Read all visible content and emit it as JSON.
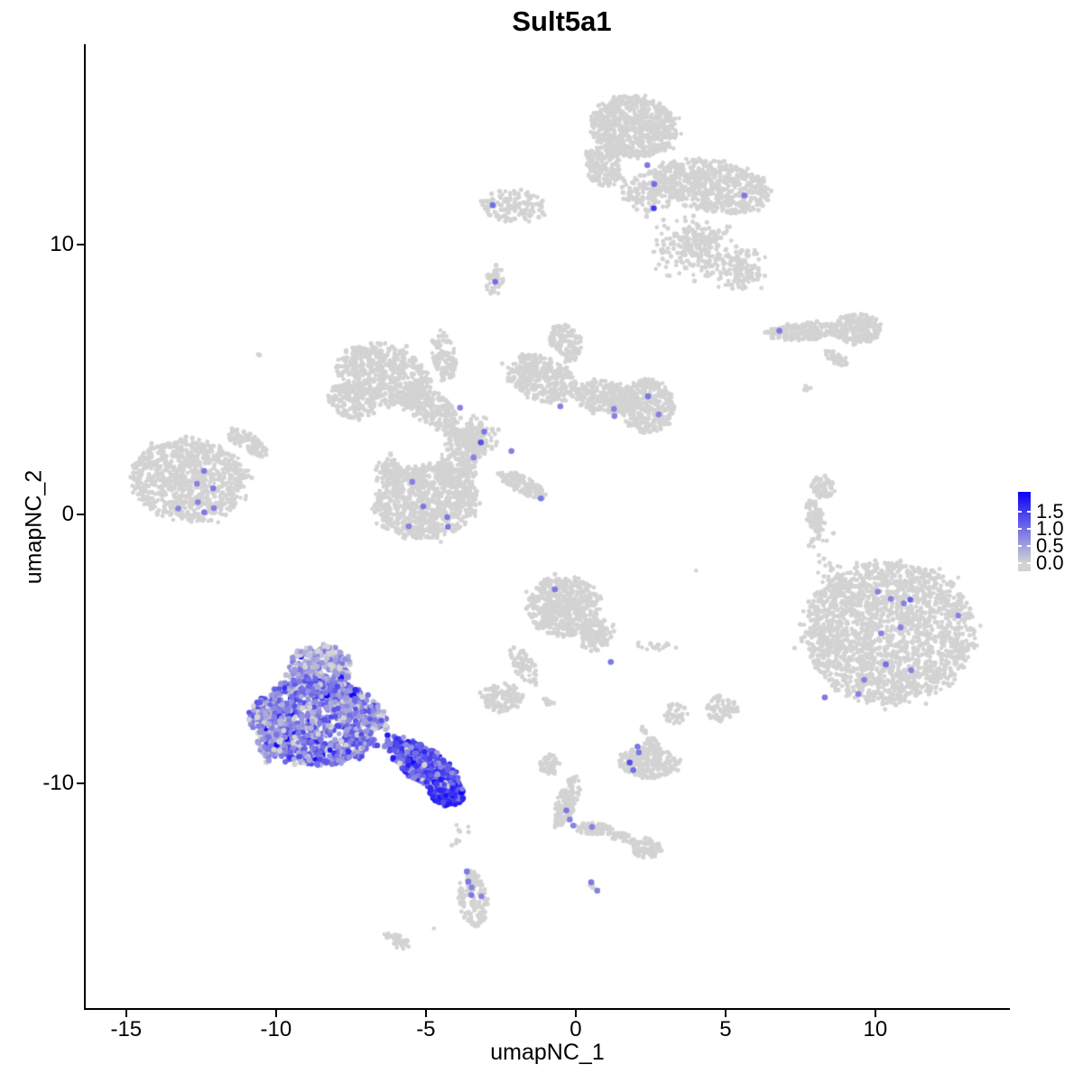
{
  "chart_data": {
    "type": "scatter",
    "title": "Sult5a1",
    "xlabel": "umapNC_1",
    "ylabel": "umapNC_2",
    "xlim": [
      -16.35,
      14.46
    ],
    "ylim": [
      -18.36,
      17.42
    ],
    "x_ticks": [
      -15,
      -10,
      -5,
      0,
      5,
      10
    ],
    "y_ticks": [
      -10,
      0,
      10
    ],
    "grid": false,
    "legend_position": "right",
    "colorbar": {
      "tick_labels": [
        "1.5",
        "1.0",
        "0.5",
        "0.0"
      ],
      "tick_values": [
        1.5,
        1.0,
        0.5,
        0.0
      ],
      "vmin": 0.0,
      "vmax": 2.08,
      "low_color": "#d3d3d3",
      "high_color": "#0b00fa"
    },
    "marker": {
      "grey_radius": 2.4,
      "expressing_radius": 3.0,
      "outlier_radius": 3.3
    },
    "cluster_columns": [
      "id",
      "x",
      "y",
      "rx",
      "ry",
      "rot_deg",
      "n_points",
      "fill"
    ],
    "clusters": [
      [
        "top-head",
        1.93,
        14.4,
        1.45,
        1.14,
        -8,
        720,
        "disc"
      ],
      [
        "top-neck",
        0.9,
        12.9,
        0.6,
        0.8,
        20,
        170,
        "disc"
      ],
      [
        "top-body-right",
        4.58,
        12.2,
        1.95,
        0.95,
        -12,
        620,
        "disc"
      ],
      [
        "top-belly-sparse",
        2.47,
        11.9,
        1.15,
        0.9,
        0,
        130,
        "gauss"
      ],
      [
        "top-lower-scatter",
        3.98,
        9.9,
        1.6,
        1.3,
        0,
        260,
        "gauss"
      ],
      [
        "top-lower-right",
        5.63,
        9.05,
        0.85,
        0.95,
        0,
        130,
        "gauss"
      ],
      [
        "top-wing",
        -2.05,
        11.46,
        1.1,
        0.62,
        -5,
        140,
        "disc"
      ],
      [
        "top-tiny-below",
        -2.71,
        8.71,
        0.32,
        0.55,
        0,
        40,
        "disc"
      ],
      [
        "sprawl-nw",
        -6.42,
        5.19,
        1.6,
        1.1,
        -20,
        560,
        "disc"
      ],
      [
        "sprawl-nw-arm",
        -7.47,
        4.19,
        0.85,
        0.6,
        -30,
        160,
        "disc"
      ],
      [
        "sprawl-inner-arm",
        -4.9,
        4.0,
        1.1,
        0.55,
        -35,
        210,
        "disc"
      ],
      [
        "sprawl-top-arm",
        -4.4,
        5.86,
        0.38,
        0.95,
        10,
        110,
        "disc"
      ],
      [
        "sprawl-central",
        -3.55,
        2.85,
        0.95,
        0.85,
        0,
        260,
        "gauss"
      ],
      [
        "sprawl-east-arm",
        -1.14,
        5.03,
        1.25,
        0.8,
        -25,
        360,
        "disc"
      ],
      [
        "sprawl-top-spur",
        -0.33,
        6.37,
        0.5,
        0.75,
        15,
        130,
        "disc"
      ],
      [
        "sprawl-bridge",
        1.02,
        4.35,
        1.05,
        0.6,
        -8,
        260,
        "disc"
      ],
      [
        "sprawl-east-lobe",
        2.38,
        4.02,
        0.9,
        1.0,
        0,
        330,
        "disc"
      ],
      [
        "sprawl-sw-lobe",
        -5.0,
        0.47,
        1.72,
        1.38,
        10,
        850,
        "disc"
      ],
      [
        "sprawl-sw-spur",
        -6.2,
        1.67,
        0.55,
        0.5,
        0,
        90,
        "gauss"
      ],
      [
        "sprawl-diag-tail",
        -1.75,
        1.1,
        0.9,
        0.3,
        -28,
        120,
        "disc"
      ],
      [
        "sprawl-link",
        -4.0,
        1.67,
        0.75,
        0.62,
        20,
        170,
        "disc"
      ],
      [
        "west-main",
        -12.89,
        1.27,
        1.95,
        1.52,
        -8,
        880,
        "disc"
      ],
      [
        "west-arm",
        -10.96,
        2.68,
        0.78,
        0.3,
        -35,
        90,
        "disc"
      ],
      [
        "west-doublet",
        -10.57,
        5.93,
        0.1,
        0.1,
        0,
        2,
        "gauss"
      ],
      [
        "ne-strip-chain",
        7.59,
        6.8,
        1.25,
        0.32,
        4,
        210,
        "disc"
      ],
      [
        "ne-strip-blob",
        9.4,
        6.87,
        0.78,
        0.58,
        0,
        200,
        "disc"
      ],
      [
        "ne-strip-diag",
        8.7,
        5.8,
        0.42,
        0.18,
        -35,
        40,
        "disc"
      ],
      [
        "ne-dots",
        7.8,
        4.7,
        0.3,
        0.28,
        0,
        6,
        "gauss"
      ],
      [
        "east-sstrip-top",
        8.25,
        1.0,
        0.38,
        0.42,
        0,
        70,
        "disc"
      ],
      [
        "east-sstrip-mid",
        7.98,
        -0.07,
        0.26,
        0.62,
        15,
        80,
        "disc"
      ],
      [
        "east-sstrip-dot",
        7.89,
        -0.95,
        0.1,
        0.1,
        0,
        4,
        "gauss"
      ],
      [
        "se-big",
        10.45,
        -4.36,
        2.85,
        2.62,
        0,
        2000,
        "disc"
      ],
      [
        "se-trail",
        8.49,
        -2.35,
        0.55,
        1.15,
        20,
        40,
        "gauss"
      ],
      [
        "se-strays-up",
        8.2,
        -0.9,
        0.45,
        0.7,
        0,
        10,
        "gauss"
      ],
      [
        "center-main",
        -0.39,
        -3.42,
        1.22,
        1.12,
        0,
        520,
        "disc"
      ],
      [
        "center-arm-se",
        0.72,
        -4.52,
        0.5,
        0.62,
        -40,
        100,
        "disc"
      ],
      [
        "center-diag-sw",
        -1.75,
        -5.6,
        0.32,
        0.78,
        30,
        70,
        "disc"
      ],
      [
        "center-sw-blob",
        -2.44,
        -6.8,
        0.68,
        0.52,
        0,
        130,
        "disc"
      ],
      [
        "center-east-bits",
        2.68,
        -4.92,
        0.68,
        0.22,
        0,
        22,
        "gauss"
      ],
      [
        "center-south-bits",
        -0.99,
        -7.03,
        0.42,
        0.25,
        0,
        10,
        "gauss"
      ],
      [
        "center-lone",
        4.07,
        -2.11,
        0.05,
        0.05,
        0,
        1,
        "gauss"
      ],
      [
        "blob-a",
        3.34,
        -7.37,
        0.38,
        0.42,
        0,
        40,
        "disc"
      ],
      [
        "blob-b",
        4.88,
        -7.2,
        0.52,
        0.48,
        0,
        70,
        "disc"
      ],
      [
        "crab-main",
        2.41,
        -9.21,
        0.98,
        0.58,
        -5,
        240,
        "disc"
      ],
      [
        "crab-bump",
        2.53,
        -8.48,
        0.26,
        0.22,
        0,
        25,
        "disc"
      ],
      [
        "crab-strays",
        2.2,
        -7.95,
        0.25,
        0.35,
        0,
        5,
        "gauss"
      ],
      [
        "chain-top",
        -0.87,
        -9.31,
        0.32,
        0.38,
        0,
        45,
        "disc"
      ],
      [
        "chain-stem",
        -0.3,
        -10.65,
        0.32,
        1.02,
        -18,
        140,
        "disc"
      ],
      [
        "chain-arm",
        0.6,
        -11.66,
        0.58,
        0.22,
        0,
        70,
        "disc"
      ],
      [
        "chain-thin",
        1.57,
        -11.99,
        0.52,
        0.16,
        -14,
        40,
        "disc"
      ],
      [
        "chain-end",
        2.38,
        -12.39,
        0.48,
        0.38,
        0,
        80,
        "disc"
      ],
      [
        "comma",
        -3.43,
        -14.24,
        0.48,
        1.05,
        8,
        130,
        "disc"
      ],
      [
        "comma-strays",
        -3.85,
        -11.9,
        0.5,
        0.95,
        0,
        9,
        "gauss"
      ],
      [
        "pair-grey",
        0.57,
        -13.8,
        0.16,
        0.16,
        0,
        6,
        "gauss"
      ],
      [
        "angled-blob",
        -5.96,
        -15.81,
        0.48,
        0.22,
        -30,
        40,
        "disc"
      ],
      [
        "lone-br",
        -4.76,
        -15.38,
        0.05,
        0.05,
        0,
        1,
        "gauss"
      ]
    ],
    "expressing_columns": [
      "id",
      "x",
      "y",
      "rx",
      "ry",
      "rot_deg",
      "n_points",
      "fill",
      "expr_min",
      "expr_max",
      "frac_zero",
      "frac_dark"
    ],
    "expressing_clusters": [
      [
        "expr-cap",
        -8.52,
        -5.7,
        1.05,
        0.85,
        0,
        260,
        "disc",
        0.15,
        0.95,
        0.22,
        0.01
      ],
      [
        "expr-body",
        -8.61,
        -7.7,
        2.25,
        1.58,
        -5,
        1050,
        "disc",
        0.25,
        1.4,
        0.1,
        0.04
      ],
      [
        "expr-west",
        -10.18,
        -8.04,
        0.5,
        1.05,
        0,
        160,
        "disc",
        0.25,
        1.1,
        0.15,
        0.02
      ],
      [
        "expr-tail",
        -5.06,
        -9.31,
        1.5,
        0.6,
        -37,
        430,
        "disc",
        0.55,
        1.65,
        0.05,
        0.1
      ],
      [
        "expr-tip",
        -4.31,
        -10.32,
        0.6,
        0.45,
        -25,
        160,
        "disc",
        0.75,
        1.85,
        0.04,
        0.25
      ]
    ],
    "outlier_columns": [
      "x",
      "y",
      "value"
    ],
    "outlier_points": [
      [
        2.38,
        12.96,
        0.9
      ],
      [
        2.62,
        12.26,
        1.0
      ],
      [
        2.62,
        11.36,
        1.5
      ],
      [
        5.63,
        11.83,
        0.9
      ],
      [
        -2.77,
        11.49,
        1.0
      ],
      [
        -2.68,
        8.64,
        1.0
      ],
      [
        -3.86,
        3.95,
        0.8
      ],
      [
        -3.04,
        3.08,
        0.9
      ],
      [
        -3.16,
        2.68,
        1.3
      ],
      [
        -3.4,
        2.1,
        0.8
      ],
      [
        -2.14,
        2.34,
        0.8
      ],
      [
        -0.51,
        4.02,
        0.8
      ],
      [
        1.27,
        3.92,
        0.8
      ],
      [
        1.3,
        3.65,
        0.8
      ],
      [
        2.41,
        4.39,
        0.9
      ],
      [
        2.77,
        3.72,
        0.8
      ],
      [
        -1.17,
        0.6,
        0.9
      ],
      [
        -5.45,
        1.21,
        0.8
      ],
      [
        -5.09,
        0.3,
        0.9
      ],
      [
        -4.28,
        -0.1,
        0.9
      ],
      [
        -5.57,
        -0.44,
        0.8
      ],
      [
        -4.25,
        -0.47,
        0.9
      ],
      [
        -12.4,
        1.6,
        0.9
      ],
      [
        -12.65,
        1.14,
        0.8
      ],
      [
        -12.1,
        0.97,
        0.9
      ],
      [
        -12.62,
        0.44,
        0.8
      ],
      [
        -13.25,
        0.23,
        0.8
      ],
      [
        -12.38,
        0.07,
        0.9
      ],
      [
        -12.08,
        0.23,
        0.8
      ],
      [
        6.81,
        6.8,
        0.9
      ],
      [
        10.09,
        -2.85,
        0.8
      ],
      [
        10.51,
        -3.12,
        0.8
      ],
      [
        11.17,
        -3.18,
        1.1
      ],
      [
        10.96,
        -3.32,
        0.8
      ],
      [
        12.77,
        -3.75,
        0.8
      ],
      [
        10.84,
        -4.19,
        0.8
      ],
      [
        10.18,
        -4.42,
        0.8
      ],
      [
        10.36,
        -5.56,
        1.0
      ],
      [
        11.2,
        -5.8,
        0.8
      ],
      [
        9.64,
        -6.13,
        0.8
      ],
      [
        9.43,
        -6.67,
        0.8
      ],
      [
        8.31,
        -6.8,
        0.9
      ],
      [
        -0.69,
        -2.78,
        0.9
      ],
      [
        1.17,
        -5.49,
        0.9
      ],
      [
        2.05,
        -8.62,
        0.9
      ],
      [
        2.12,
        -8.82,
        0.9
      ],
      [
        1.81,
        -9.21,
        1.3
      ],
      [
        1.93,
        -9.48,
        1.0
      ],
      [
        -0.3,
        -10.99,
        0.9
      ],
      [
        -0.21,
        -11.32,
        0.8
      ],
      [
        -0.09,
        -11.56,
        0.8
      ],
      [
        0.54,
        -11.59,
        0.8
      ],
      [
        -3.64,
        -13.27,
        0.9
      ],
      [
        -3.58,
        -13.63,
        0.9
      ],
      [
        -3.46,
        -13.84,
        0.8
      ],
      [
        -3.49,
        -14.14,
        0.9
      ],
      [
        -3.16,
        -14.17,
        0.8
      ],
      [
        0.51,
        -13.67,
        0.9
      ],
      [
        0.72,
        -13.97,
        0.8
      ]
    ]
  }
}
